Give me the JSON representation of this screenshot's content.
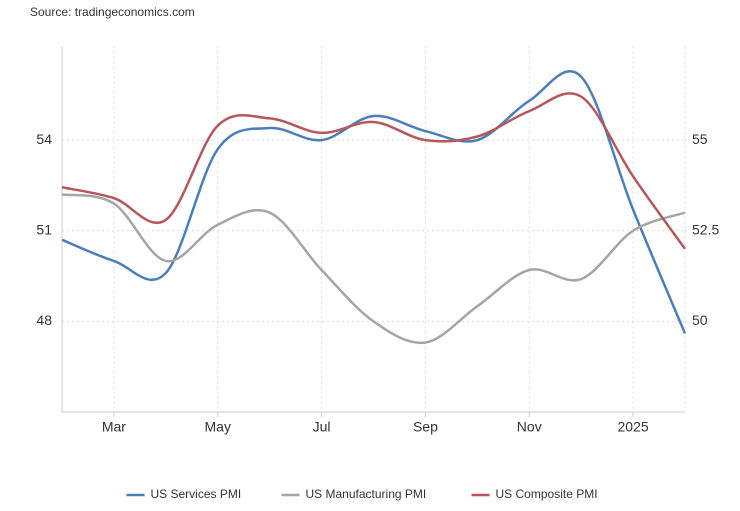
{
  "chart_data": {
    "type": "line",
    "source": "Source: tradingeconomics.com",
    "categories": [
      null,
      "Mar",
      null,
      "May",
      null,
      "Jul",
      null,
      "Sep",
      null,
      "Nov",
      null,
      "2025",
      null
    ],
    "series": [
      {
        "name": "US Services PMI",
        "color": "#4a7ebb",
        "axis": "y",
        "values": [
          50.7,
          50.0,
          49.6,
          53.7,
          54.4,
          54.0,
          54.8,
          54.3,
          54.0,
          55.3,
          56.1,
          51.7,
          47.6
        ]
      },
      {
        "name": "US Manufacturing PMI",
        "color": "#a5a5a5",
        "axis": "y",
        "values": [
          52.2,
          51.9,
          50.0,
          51.2,
          51.6,
          49.7,
          48.0,
          47.3,
          48.5,
          49.7,
          49.4,
          51.0,
          51.6
        ]
      },
      {
        "name": "US Composite PMI",
        "color": "#b5575b",
        "axis": "y2",
        "values": [
          53.7,
          53.4,
          52.8,
          55.4,
          55.6,
          55.2,
          55.5,
          55.0,
          55.1,
          55.8,
          56.2,
          54.0,
          52.0
        ]
      }
    ],
    "ylim": [
      45,
      57
    ],
    "yticks": [
      48,
      51,
      54
    ],
    "y2lim": [
      47.5,
      57.5
    ],
    "y2ticks": [
      50,
      52.5,
      55
    ],
    "grid": true,
    "legend": "bottom"
  }
}
